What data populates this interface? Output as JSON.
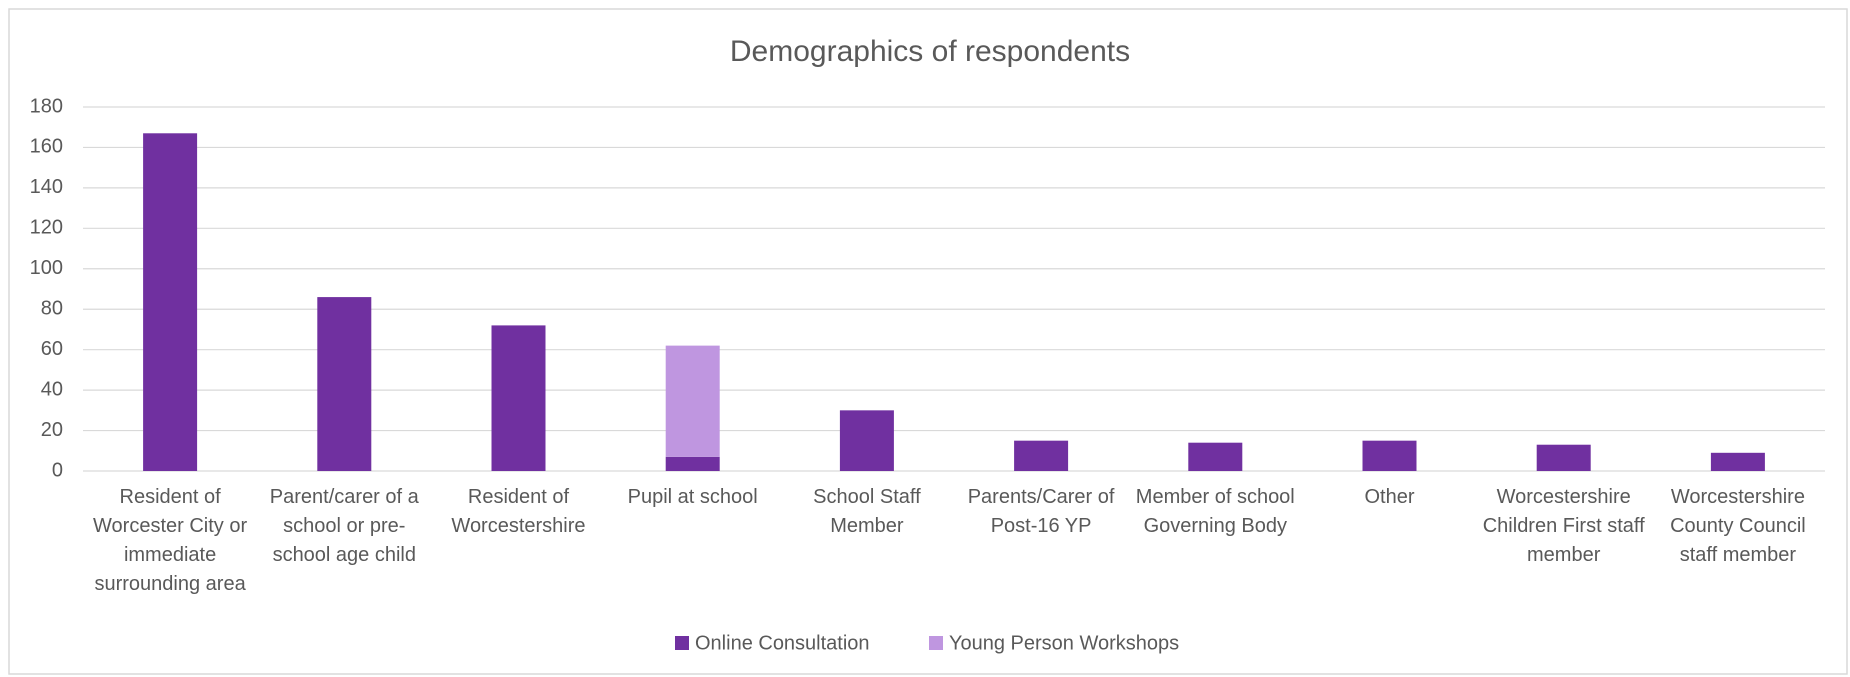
{
  "chart_data": {
    "type": "bar",
    "stacked": true,
    "title": "Demographics of respondents",
    "categories": [
      "Resident of Worcester City or immediate surrounding area",
      "Parent/carer of a school or pre-school age child",
      "Resident of Worcestershire",
      "Pupil at school",
      "School Staff Member",
      "Parents/Carer of Post-16 YP",
      "Member of school Governing Body",
      "Other",
      "Worcestershire Children First staff member",
      "Worcestershire County Council staff member"
    ],
    "series": [
      {
        "name": "Online Consultation",
        "color": "#7030a0",
        "values": [
          167,
          86,
          72,
          7,
          30,
          15,
          14,
          15,
          13,
          9
        ]
      },
      {
        "name": "Young Person Workshops",
        "color": "#bf96e0",
        "values": [
          0,
          0,
          0,
          55,
          0,
          0,
          0,
          0,
          0,
          0
        ]
      }
    ],
    "ylim": [
      0,
      180
    ],
    "yticks": [
      0,
      20,
      40,
      60,
      80,
      100,
      120,
      140,
      160,
      180
    ],
    "grid": true,
    "legend": "bottom"
  }
}
